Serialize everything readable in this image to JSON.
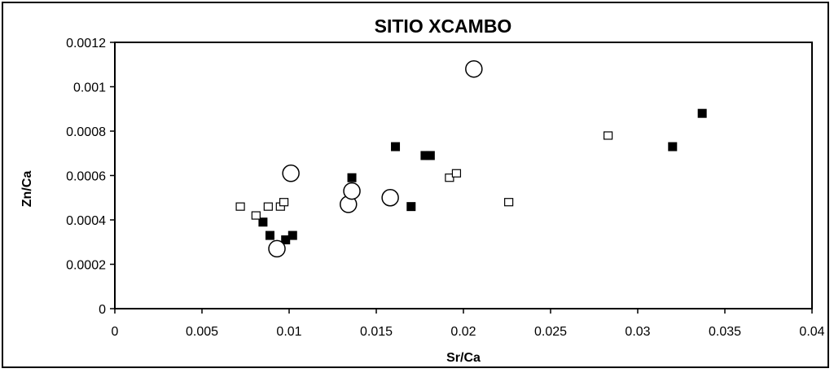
{
  "chart_data": {
    "type": "scatter",
    "title": "SITIO XCAMBO",
    "xlabel": "Sr/Ca",
    "ylabel": "Zn/Ca",
    "xlim": [
      0,
      0.04
    ],
    "ylim": [
      0,
      0.0012
    ],
    "xticks": [
      "0",
      "0.005",
      "0.01",
      "0.015",
      "0.02",
      "0.025",
      "0.03",
      "0.035",
      "0.04"
    ],
    "yticks": [
      "0",
      "0.0002",
      "0.0004",
      "0.0006",
      "0.0008",
      "0.001",
      "0.0012"
    ],
    "grid": false,
    "legend": "none",
    "series": [
      {
        "marker": "filled-square",
        "color": "#000000",
        "points": [
          {
            "x": 0.0085,
            "y": 0.00039
          },
          {
            "x": 0.0089,
            "y": 0.00033
          },
          {
            "x": 0.0098,
            "y": 0.00031
          },
          {
            "x": 0.0102,
            "y": 0.00033
          },
          {
            "x": 0.0136,
            "y": 0.00059
          },
          {
            "x": 0.0161,
            "y": 0.00073
          },
          {
            "x": 0.017,
            "y": 0.00046
          },
          {
            "x": 0.0178,
            "y": 0.00069
          },
          {
            "x": 0.0181,
            "y": 0.00069
          },
          {
            "x": 0.032,
            "y": 0.00073
          },
          {
            "x": 0.0337,
            "y": 0.00088
          }
        ]
      },
      {
        "marker": "open-square",
        "color": "#000000",
        "points": [
          {
            "x": 0.0072,
            "y": 0.00046
          },
          {
            "x": 0.0081,
            "y": 0.00042
          },
          {
            "x": 0.0088,
            "y": 0.00046
          },
          {
            "x": 0.0095,
            "y": 0.00046
          },
          {
            "x": 0.0097,
            "y": 0.00048
          },
          {
            "x": 0.0192,
            "y": 0.00059
          },
          {
            "x": 0.0196,
            "y": 0.00061
          },
          {
            "x": 0.0226,
            "y": 0.00048
          },
          {
            "x": 0.0283,
            "y": 0.00078
          }
        ]
      },
      {
        "marker": "open-circle",
        "color": "#000000",
        "points": [
          {
            "x": 0.0093,
            "y": 0.00027
          },
          {
            "x": 0.0101,
            "y": 0.00061
          },
          {
            "x": 0.0134,
            "y": 0.00047
          },
          {
            "x": 0.0136,
            "y": 0.00053
          },
          {
            "x": 0.0158,
            "y": 0.0005
          },
          {
            "x": 0.0206,
            "y": 0.00108
          }
        ]
      }
    ]
  }
}
